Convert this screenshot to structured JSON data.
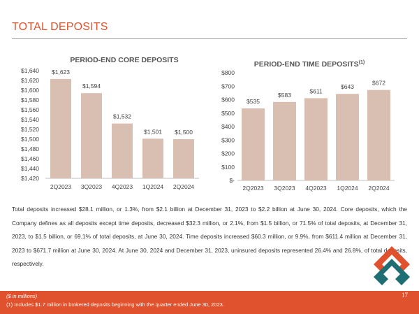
{
  "page": {
    "title": "TOTAL DEPOSITS",
    "page_number": "17"
  },
  "charts": [
    {
      "type": "bar",
      "title": "PERIOD-END CORE DEPOSITS",
      "categories": [
        "2Q2023",
        "3Q2023",
        "4Q2023",
        "1Q2024",
        "2Q2024"
      ],
      "values": [
        1623,
        1594,
        1532,
        1501,
        1500
      ],
      "data_labels": [
        "$1,623",
        "$1,594",
        "$1,532",
        "$1,501",
        "$1,500"
      ],
      "ylim": [
        1420,
        1640
      ],
      "y_ticks": [
        1420,
        1440,
        1460,
        1480,
        1500,
        1520,
        1540,
        1560,
        1580,
        1600,
        1620,
        1640
      ],
      "y_tick_labels": [
        "$1,420",
        "$1,440",
        "$1,460",
        "$1,480",
        "$1,500",
        "$1,520",
        "$1,540",
        "$1,560",
        "$1,580",
        "$1,600",
        "$1,620",
        "$1,640"
      ],
      "bar_color": "#d9bfb2"
    },
    {
      "type": "bar",
      "title": "PERIOD-END TIME DEPOSITS",
      "title_superscript": "(1)",
      "categories": [
        "2Q2023",
        "3Q2023",
        "4Q2023",
        "1Q2024",
        "2Q2024"
      ],
      "values": [
        535,
        583,
        611,
        643,
        672
      ],
      "data_labels": [
        "$535",
        "$583",
        "$611",
        "$643",
        "$672"
      ],
      "ylim": [
        0,
        800
      ],
      "y_ticks": [
        0,
        100,
        200,
        300,
        400,
        500,
        600,
        700,
        800
      ],
      "y_tick_labels": [
        "$-",
        "$100",
        "$200",
        "$300",
        "$400",
        "$500",
        "$600",
        "$700",
        "$800"
      ],
      "bar_color": "#d9bfb2"
    }
  ],
  "narrative": "Total deposits increased $28.1 million, or 1.3%, from $2.1 billion at December 31, 2023 to $2.2 billion at June 30, 2024. Core deposits, which the Company defines as all deposits except time deposits, decreased $32.3 million, or 2.1%, from $1.5 billion, or 71.5% of total deposits, at December 31, 2023, to $1.5 billion, or 69.1% of total deposits, at June 30, 2024. Time deposits increased $60.3 million, or 9.9%, from $611.4 million at December 31, 2023 to $671.7 million at June 30, 2024. At June 30, 2024 and December 31, 2023, uninsured deposits represented 26.4% and 26.8%, of total deposits, respectively.",
  "footer": {
    "units_note": "($ in millions)",
    "footnote": "(1) Includes $1.7 million in brokered deposits beginning with the quarter ended June 30, 2023."
  },
  "colors": {
    "accent": "#e0522d",
    "logo_teal": "#1f6e73",
    "bar": "#d9bfb2"
  }
}
